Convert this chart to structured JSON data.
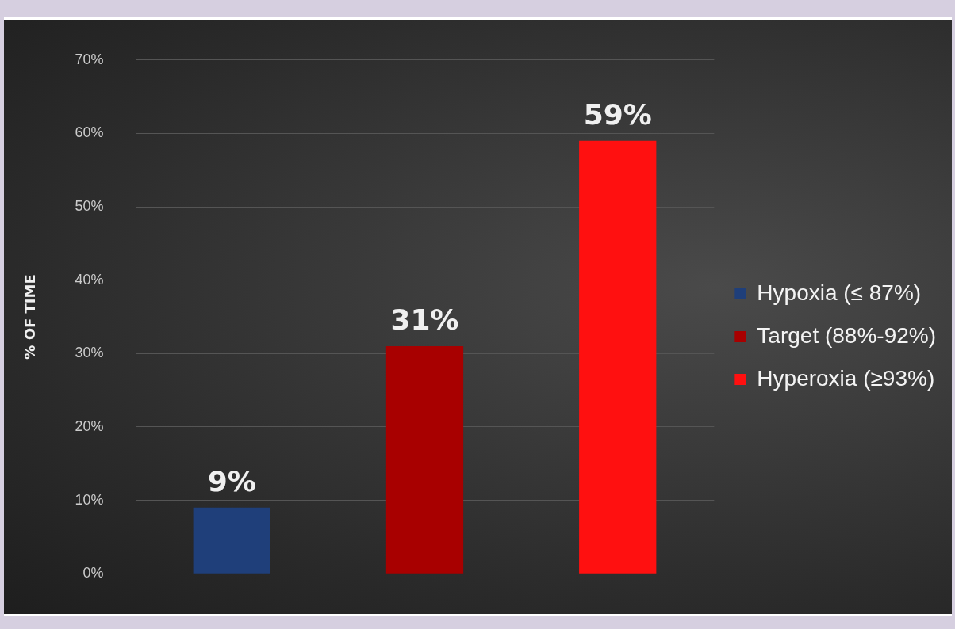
{
  "chart_data": {
    "type": "bar",
    "ylabel": "% OF TIME",
    "categories": [
      null,
      null,
      null
    ],
    "series": [
      {
        "name": "Hypoxia (≤ 87%)",
        "color": "#1f3f7a",
        "values": [
          9,
          null,
          null
        ],
        "value_labels": [
          "9%",
          null,
          null
        ]
      },
      {
        "name": "Target (88%-92%)",
        "color": "#a80000",
        "values": [
          null,
          31,
          null
        ],
        "value_labels": [
          null,
          "31%",
          null
        ]
      },
      {
        "name": "Hyperoxia (≥93%)",
        "color": "#ff1010",
        "values": [
          null,
          null,
          59
        ],
        "value_labels": [
          null,
          null,
          "59%"
        ]
      }
    ],
    "ylim": [
      0,
      70
    ],
    "yticks": [
      {
        "value": 0,
        "label": "0%"
      },
      {
        "value": 10,
        "label": "10%"
      },
      {
        "value": 20,
        "label": "20%"
      },
      {
        "value": 30,
        "label": "30%"
      },
      {
        "value": 40,
        "label": "40%"
      },
      {
        "value": 50,
        "label": "50%"
      },
      {
        "value": 60,
        "label": "60%"
      },
      {
        "value": 70,
        "label": "70%"
      }
    ],
    "grid": "y",
    "legend": "right"
  }
}
